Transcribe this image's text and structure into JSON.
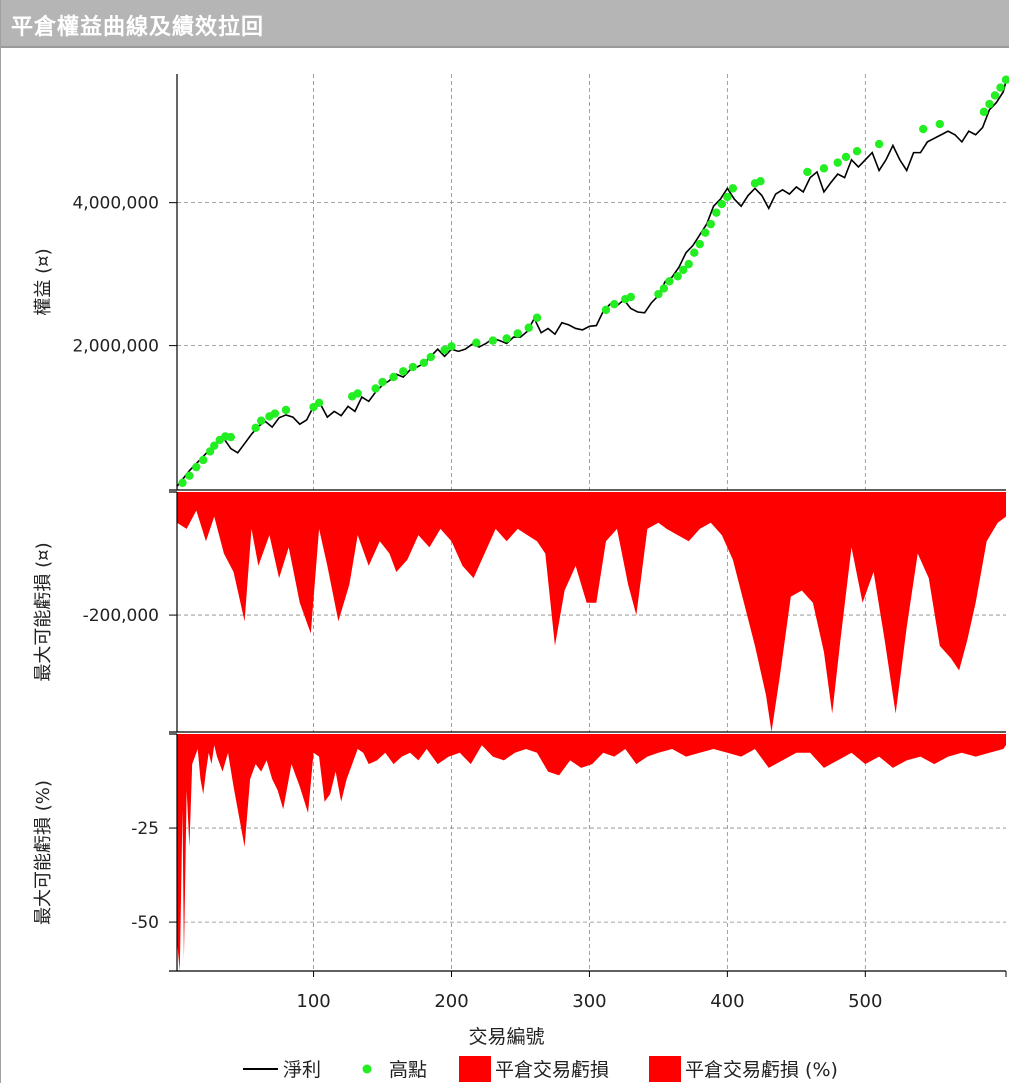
{
  "window": {
    "title": "平倉權益曲線及績效拉回"
  },
  "chart_data": {
    "type": "line",
    "xlabel": "交易編號",
    "xlim": [
      1,
      602
    ],
    "x_ticks": [
      100,
      200,
      300,
      400,
      500
    ],
    "panels": [
      {
        "id": "equity",
        "ylabel": "權益 (¤)",
        "ylim": [
          -20000,
          5800000
        ],
        "y_ticks": [
          2000000,
          4000000
        ],
        "y_tick_labels": [
          "2,000,000",
          "4,000,000"
        ],
        "series": [
          {
            "name": "淨利",
            "kind": "line",
            "color": "#000000",
            "x": [
              1,
              10,
              20,
              30,
              35,
              40,
              45,
              50,
              55,
              60,
              65,
              70,
              75,
              80,
              85,
              90,
              95,
              100,
              105,
              110,
              115,
              120,
              125,
              130,
              135,
              140,
              145,
              150,
              155,
              160,
              165,
              170,
              175,
              180,
              185,
              190,
              195,
              200,
              205,
              210,
              215,
              220,
              225,
              230,
              235,
              240,
              245,
              250,
              255,
              260,
              265,
              270,
              275,
              280,
              285,
              290,
              295,
              300,
              305,
              310,
              315,
              320,
              325,
              330,
              335,
              340,
              345,
              350,
              355,
              360,
              365,
              370,
              375,
              380,
              385,
              390,
              395,
              400,
              405,
              410,
              415,
              420,
              425,
              430,
              435,
              440,
              445,
              450,
              455,
              460,
              465,
              470,
              475,
              480,
              485,
              490,
              495,
              500,
              505,
              510,
              515,
              520,
              525,
              530,
              535,
              540,
              545,
              550,
              555,
              560,
              565,
              570,
              575,
              580,
              585,
              590,
              595,
              600,
              602
            ],
            "y": [
              30000,
              250000,
              450000,
              650000,
              700000,
              560000,
              500000,
              630000,
              760000,
              870000,
              940000,
              860000,
              990000,
              1030000,
              1000000,
              900000,
              960000,
              1150000,
              1180000,
              1000000,
              1080000,
              1020000,
              1150000,
              1080000,
              1280000,
              1220000,
              1350000,
              1450000,
              1510000,
              1600000,
              1560000,
              1660000,
              1700000,
              1750000,
              1850000,
              1950000,
              1850000,
              1950000,
              1920000,
              1950000,
              2020000,
              1980000,
              2030000,
              2100000,
              2070000,
              2030000,
              2120000,
              2120000,
              2200000,
              2380000,
              2180000,
              2240000,
              2160000,
              2320000,
              2290000,
              2240000,
              2220000,
              2270000,
              2280000,
              2480000,
              2580000,
              2560000,
              2640000,
              2520000,
              2470000,
              2460000,
              2600000,
              2700000,
              2900000,
              2960000,
              3100000,
              3300000,
              3400000,
              3550000,
              3700000,
              3950000,
              4050000,
              4200000,
              4050000,
              3950000,
              4100000,
              4200000,
              4100000,
              3920000,
              4120000,
              4180000,
              4120000,
              4220000,
              4150000,
              4350000,
              4430000,
              4150000,
              4280000,
              4400000,
              4350000,
              4600000,
              4500000,
              4600000,
              4700000,
              4450000,
              4600000,
              4800000,
              4600000,
              4450000,
              4700000,
              4700000,
              4850000,
              4900000,
              4950000,
              5000000,
              4950000,
              4850000,
              5000000,
              4950000,
              5050000,
              5300000,
              5400000,
              5550000,
              5700000
            ]
          },
          {
            "name": "高點",
            "kind": "points",
            "color": "#22ee22",
            "x": [
              5,
              10,
              15,
              20,
              25,
              28,
              32,
              36,
              40,
              58,
              62,
              68,
              72,
              80,
              100,
              104,
              128,
              132,
              145,
              150,
              158,
              165,
              172,
              180,
              185,
              195,
              200,
              218,
              230,
              240,
              248,
              256,
              262,
              312,
              318,
              326,
              330,
              350,
              354,
              358,
              364,
              368,
              372,
              376,
              380,
              384,
              388,
              392,
              396,
              400,
              404,
              420,
              424,
              458,
              470,
              480,
              486,
              494,
              510,
              542,
              554,
              586,
              590,
              594,
              598,
              602
            ],
            "y": [
              80000,
              180000,
              300000,
              400000,
              520000,
              600000,
              680000,
              730000,
              720000,
              850000,
              950000,
              1010000,
              1050000,
              1100000,
              1140000,
              1200000,
              1290000,
              1330000,
              1400000,
              1490000,
              1560000,
              1640000,
              1700000,
              1760000,
              1840000,
              1940000,
              1990000,
              2040000,
              2070000,
              2100000,
              2170000,
              2250000,
              2390000,
              2500000,
              2580000,
              2650000,
              2680000,
              2720000,
              2800000,
              2900000,
              2970000,
              3060000,
              3140000,
              3300000,
              3420000,
              3580000,
              3700000,
              3860000,
              3980000,
              4080000,
              4200000,
              4270000,
              4300000,
              4430000,
              4480000,
              4560000,
              4640000,
              4720000,
              4820000,
              5030000,
              5100000,
              5270000,
              5380000,
              5500000,
              5610000,
              5720000
            ]
          }
        ]
      },
      {
        "id": "drawdown",
        "ylabel": "最大可能虧損 (¤)",
        "ylim": [
          -390000,
          0
        ],
        "y_ticks": [
          -200000
        ],
        "y_tick_labels": [
          "-200,000"
        ],
        "series": [
          {
            "name": "平倉交易虧損",
            "kind": "area",
            "color": "#ff0000",
            "x": [
              1,
              8,
              15,
              22,
              28,
              35,
              42,
              50,
              55,
              60,
              68,
              75,
              82,
              90,
              98,
              104,
              110,
              118,
              126,
              132,
              140,
              148,
              155,
              160,
              168,
              176,
              184,
              192,
              200,
              208,
              216,
              224,
              232,
              240,
              248,
              255,
              262,
              268,
              275,
              282,
              290,
              298,
              305,
              312,
              320,
              328,
              334,
              342,
              350,
              356,
              364,
              372,
              380,
              388,
              396,
              404,
              412,
              420,
              428,
              432,
              438,
              446,
              454,
              462,
              470,
              476,
              482,
              490,
              498,
              506,
              514,
              522,
              530,
              538,
              546,
              554,
              562,
              568,
              574,
              580,
              588,
              596,
              602
            ],
            "y": [
              -50000,
              -60000,
              -30000,
              -80000,
              -40000,
              -100000,
              -130000,
              -210000,
              -60000,
              -120000,
              -70000,
              -140000,
              -90000,
              -180000,
              -230000,
              -60000,
              -120000,
              -210000,
              -150000,
              -70000,
              -120000,
              -80000,
              -100000,
              -130000,
              -110000,
              -70000,
              -90000,
              -60000,
              -80000,
              -120000,
              -140000,
              -100000,
              -60000,
              -80000,
              -60000,
              -70000,
              -80000,
              -100000,
              -250000,
              -160000,
              -120000,
              -180000,
              -180000,
              -80000,
              -60000,
              -150000,
              -200000,
              -60000,
              -50000,
              -60000,
              -70000,
              -80000,
              -60000,
              -50000,
              -70000,
              -110000,
              -180000,
              -250000,
              -330000,
              -390000,
              -300000,
              -170000,
              -160000,
              -180000,
              -260000,
              -360000,
              -240000,
              -90000,
              -180000,
              -130000,
              -240000,
              -360000,
              -220000,
              -100000,
              -140000,
              -250000,
              -270000,
              -290000,
              -240000,
              -180000,
              -80000,
              -50000,
              -40000
            ]
          }
        ]
      },
      {
        "id": "drawdown_pct",
        "ylabel": "最大可能虧損 (%)",
        "ylim": [
          -63,
          0
        ],
        "y_ticks": [
          -25,
          -50
        ],
        "y_tick_labels": [
          "-25",
          "-50"
        ],
        "series": [
          {
            "name": "平倉交易虧損 (%)",
            "kind": "area",
            "color": "#ff0000",
            "x": [
              1,
              3,
              5,
              6,
              8,
              10,
              12,
              14,
              16,
              18,
              20,
              22,
              24,
              26,
              28,
              30,
              34,
              38,
              42,
              46,
              50,
              54,
              58,
              62,
              66,
              70,
              74,
              78,
              84,
              90,
              96,
              100,
              104,
              108,
              112,
              116,
              120,
              124,
              128,
              132,
              136,
              140,
              146,
              152,
              158,
              164,
              170,
              176,
              182,
              190,
              198,
              206,
              214,
              222,
              230,
              238,
              246,
              254,
              262,
              270,
              278,
              286,
              294,
              302,
              310,
              318,
              326,
              334,
              342,
              350,
              360,
              370,
              380,
              390,
              400,
              410,
              420,
              430,
              440,
              450,
              460,
              470,
              480,
              490,
              500,
              510,
              520,
              530,
              540,
              550,
              560,
              570,
              580,
              590,
              600,
              602
            ],
            "y": [
              -55,
              -63,
              -20,
              -60,
              -15,
              -30,
              -8,
              -6,
              -4,
              -12,
              -16,
              -10,
              -5,
              -8,
              -3,
              -6,
              -10,
              -5,
              -14,
              -22,
              -30,
              -12,
              -8,
              -10,
              -7,
              -12,
              -15,
              -20,
              -8,
              -14,
              -21,
              -5,
              -6,
              -18,
              -16,
              -10,
              -18,
              -12,
              -8,
              -4,
              -5,
              -8,
              -7,
              -5,
              -8,
              -6,
              -5,
              -7,
              -4,
              -8,
              -6,
              -5,
              -8,
              -3,
              -6,
              -7,
              -5,
              -4,
              -5,
              -10,
              -11,
              -7,
              -9,
              -8,
              -5,
              -6,
              -4,
              -8,
              -6,
              -5,
              -4,
              -6,
              -5,
              -4,
              -5,
              -6,
              -4,
              -9,
              -7,
              -5,
              -5,
              -9,
              -7,
              -5,
              -8,
              -6,
              -9,
              -7,
              -6,
              -8,
              -6,
              -5,
              -6,
              -5,
              -4,
              -3
            ]
          }
        ]
      }
    ],
    "legend": {
      "placement": "bottom",
      "items": [
        {
          "label": "淨利",
          "marker": "line",
          "color": "#000000"
        },
        {
          "label": "高點",
          "marker": "dot",
          "color": "#22ee22"
        },
        {
          "label": "平倉交易虧損",
          "marker": "box",
          "color": "#ff0000"
        },
        {
          "label": "平倉交易虧損 (%)",
          "marker": "box",
          "color": "#ff0000"
        }
      ]
    },
    "grid": true
  }
}
